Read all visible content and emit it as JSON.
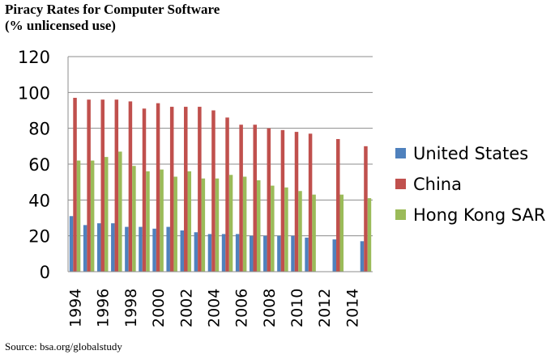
{
  "title_line1": "Piracy Rates for Computer Software",
  "title_line2": "(% unlicensed use)",
  "source": "Source: bsa.org/globalstudy",
  "chart_data": {
    "type": "bar",
    "title": "Piracy Rates for Computer Software (% unlicensed use)",
    "xlabel": "",
    "ylabel": "",
    "ylim": [
      0,
      120
    ],
    "yticks": [
      0,
      20,
      40,
      60,
      80,
      100,
      120
    ],
    "grid": true,
    "legend_position": "right",
    "categories": [
      1994,
      1995,
      1996,
      1997,
      1998,
      1999,
      2000,
      2001,
      2002,
      2003,
      2004,
      2005,
      2006,
      2007,
      2008,
      2009,
      2010,
      2011,
      2012,
      2013,
      2014,
      2015
    ],
    "x_tick_labels": [
      "1994",
      "1996",
      "1998",
      "2000",
      "2002",
      "2004",
      "2006",
      "2008",
      "2010",
      "2012",
      "2014"
    ],
    "series": [
      {
        "name": "United States",
        "color": "#4F81BD",
        "values": [
          31,
          26,
          27,
          27,
          25,
          25,
          24,
          25,
          23,
          22,
          21,
          21,
          21,
          20,
          20,
          20,
          20,
          19,
          null,
          18,
          null,
          17
        ]
      },
      {
        "name": "China",
        "color": "#C0504D",
        "values": [
          97,
          96,
          96,
          96,
          95,
          91,
          94,
          92,
          92,
          92,
          90,
          86,
          82,
          82,
          80,
          79,
          78,
          77,
          null,
          74,
          null,
          70
        ]
      },
      {
        "name": "Hong Kong SAR",
        "color": "#9BBB59",
        "values": [
          62,
          62,
          64,
          67,
          59,
          56,
          57,
          53,
          56,
          52,
          52,
          54,
          53,
          51,
          48,
          47,
          45,
          43,
          null,
          43,
          null,
          41
        ]
      }
    ]
  }
}
